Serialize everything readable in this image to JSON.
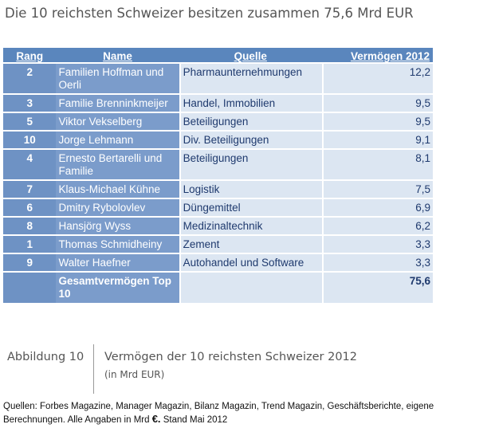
{
  "title": "Die 10 reichsten Schweizer besitzen zusammen 75,6 Mrd EUR",
  "table": {
    "headers": {
      "rank": "Rang",
      "name": "Name",
      "source": "Quelle",
      "wealth": "Vermögen 2012"
    },
    "rows": [
      {
        "rank": "2",
        "name": "Familien Hoffman und Oerli",
        "source": "Pharmaunternehmungen",
        "wealth": "12,2"
      },
      {
        "rank": "3",
        "name": "Familie Brenninkmeijer",
        "source": "Handel, Immobilien",
        "wealth": "9,5"
      },
      {
        "rank": "5",
        "name": "Viktor Vekselberg",
        "source": "Beteiligungen",
        "wealth": "9,5"
      },
      {
        "rank": "10",
        "name": "Jorge Lehmann",
        "source": "Div. Beteiligungen",
        "wealth": "9,1"
      },
      {
        "rank": "4",
        "name": "Ernesto Bertarelli und Familie",
        "source": "Beteiligungen",
        "wealth": "8,1"
      },
      {
        "rank": "7",
        "name": "Klaus-Michael Kühne",
        "source": "Logistik",
        "wealth": "7,5"
      },
      {
        "rank": "6",
        "name": "Dmitry Rybolovlev",
        "source": "Düngemittel",
        "wealth": "6,9"
      },
      {
        "rank": "8",
        "name": "Hansjörg Wyss",
        "source": "Medizinaltechnik",
        "wealth": "6,2"
      },
      {
        "rank": "1",
        "name": "Thomas Schmidheiny",
        "source": "Zement",
        "wealth": "3,3"
      },
      {
        "rank": "9",
        "name": "Walter Haefner",
        "source": "Autohandel und Software",
        "wealth": "3,3"
      }
    ],
    "total": {
      "label": "Gesamtvermögen Top 10",
      "wealth": "75,6"
    }
  },
  "figure": {
    "label": "Abbildung 10",
    "caption": "Vermögen der 10 reichsten Schweizer 2012",
    "subcaption": "(in Mrd EUR)"
  },
  "sources": {
    "text_before": "Quellen: Forbes Magazine, Manager Magazin, Bilanz Magazin, Trend Magazin, Geschäftsberichte, eigene Berechnungen. Alle Angaben in Mrd ",
    "euro": "€.",
    "text_after": " Stand Mai 2012"
  },
  "colors": {
    "header": "#5a86bd",
    "rank_cell": "#6e92c4",
    "name_cell": "#7b9ccb",
    "light_cell": "#dce6f2",
    "dark_text": "#1f3a6e"
  }
}
